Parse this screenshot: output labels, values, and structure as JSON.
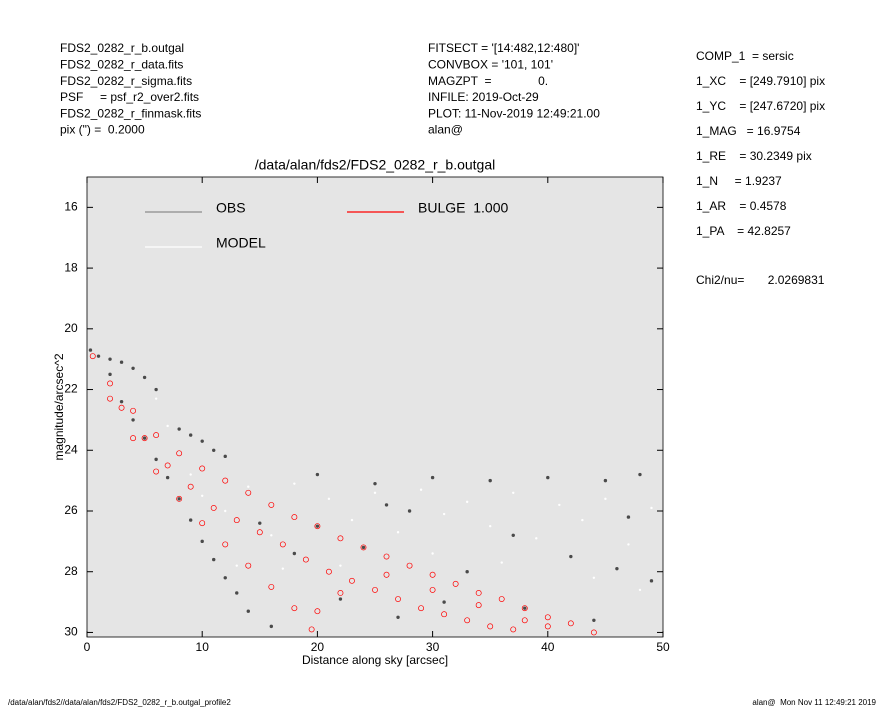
{
  "header_left": [
    "FDS2_0282_r_b.outgal",
    "FDS2_0282_r_data.fits",
    "FDS2_0282_r_sigma.fits",
    "PSF     = psf_r2_over2.fits",
    "FDS2_0282_r_finmask.fits",
    "pix (\") =  0.2000"
  ],
  "header_middle": [
    "FITSECT = '[14:482,12:480]'",
    "CONVBOX = '101, 101'",
    "MAGZPT  =              0.",
    "INFILE: 2019-Oct-29",
    "PLOT: 11-Nov-2019 12:49:21.00",
    "alan@"
  ],
  "parameters": [
    "COMP_1  = sersic",
    "1_XC    = [249.7910] pix",
    "1_YC    = [247.6720] pix",
    "1_MAG   = 16.9754",
    "1_RE    = 30.2349 pix",
    "1_N     = 1.9237",
    "1_AR    = 0.4578",
    "1_PA    = 42.8257"
  ],
  "chi2": "Chi2/nu=       2.0269831",
  "footer_left": "/data/alan/fds2//data/alan/fds2/FDS2_0282_r_b.outgal_profile2",
  "footer_right": "alan@  Mon Nov 11 12:49:21 2019",
  "chart_data": {
    "type": "scatter",
    "title": "/data/alan/fds2/FDS2_0282_r_b.outgal",
    "x_label": "Distance along sky [arcsec]",
    "y_label": "magnitude/arcsec^2",
    "xlim": [
      0,
      50
    ],
    "ylim": [
      30.15,
      15
    ],
    "xticks": [
      0,
      10,
      20,
      30,
      40,
      50
    ],
    "yticks": [
      16,
      18,
      20,
      22,
      24,
      26,
      28,
      30
    ],
    "background": "#e5e5e5",
    "series": [
      {
        "name": "OBS",
        "color": "#4a4a4a",
        "legend_color": "#8c8c8c",
        "x": [
          0.3,
          1,
          2,
          3,
          4,
          5,
          6,
          2,
          3,
          4,
          5,
          6,
          7,
          8,
          9,
          10,
          11,
          12,
          13,
          14,
          16,
          8,
          9,
          10,
          11,
          12,
          20,
          25,
          30,
          35,
          40,
          45,
          48,
          20,
          24,
          28,
          33,
          37,
          42,
          47,
          49,
          22,
          27,
          31,
          44,
          15,
          18,
          38,
          46,
          26
        ],
        "values": [
          20.7,
          20.9,
          21.0,
          21.1,
          21.3,
          21.6,
          22.0,
          21.5,
          22.4,
          23.0,
          23.6,
          24.3,
          24.9,
          25.6,
          26.3,
          27.0,
          27.6,
          28.2,
          28.7,
          29.3,
          29.8,
          23.3,
          23.5,
          23.7,
          24.0,
          24.2,
          24.8,
          25.1,
          24.9,
          25.0,
          24.9,
          25.0,
          24.8,
          26.5,
          27.2,
          26.0,
          28.0,
          26.8,
          27.5,
          26.2,
          28.3,
          28.9,
          29.5,
          29.0,
          29.6,
          26.4,
          27.4,
          29.2,
          27.9,
          25.8
        ]
      },
      {
        "name": "MODEL",
        "color": "#ffffff",
        "legend_color": "#ffffff",
        "x": [
          10,
          12,
          14,
          16,
          18,
          21,
          23,
          25,
          27,
          29,
          31,
          33,
          35,
          37,
          39,
          41,
          43,
          45,
          47,
          49,
          13,
          17,
          22,
          30,
          36,
          44,
          48,
          9,
          6,
          7
        ],
        "values": [
          25.5,
          26.0,
          25.2,
          26.8,
          25.1,
          25.6,
          26.3,
          25.4,
          26.7,
          25.3,
          26.1,
          25.7,
          26.5,
          25.4,
          26.9,
          25.8,
          26.3,
          25.6,
          27.1,
          25.9,
          27.8,
          27.9,
          27.8,
          27.4,
          27.7,
          28.2,
          28.6,
          24.8,
          22.3,
          23.2
        ]
      },
      {
        "name": "BULGE  1.000",
        "color": "#ff0000",
        "legend_color": "#ff0000",
        "x": [
          0.5,
          2,
          4,
          6,
          8,
          10,
          12,
          14,
          16,
          18,
          20,
          22,
          24,
          26,
          28,
          30,
          32,
          34,
          36,
          38,
          40,
          42,
          44,
          2,
          4,
          6,
          8,
          10,
          12,
          14,
          16,
          18,
          19.5,
          3,
          5,
          7,
          9,
          11,
          13,
          15,
          17,
          19,
          21,
          23,
          25,
          27,
          29,
          31,
          33,
          35,
          37,
          26,
          30,
          34,
          38,
          40,
          22,
          20
        ],
        "values": [
          20.9,
          21.8,
          22.7,
          23.5,
          24.1,
          24.6,
          25.0,
          25.4,
          25.8,
          26.2,
          26.5,
          26.9,
          27.2,
          27.5,
          27.8,
          28.1,
          28.4,
          28.7,
          28.9,
          29.2,
          29.5,
          29.7,
          30.0,
          22.3,
          23.6,
          24.7,
          25.6,
          26.4,
          27.1,
          27.8,
          28.5,
          29.2,
          29.9,
          22.6,
          23.6,
          24.5,
          25.2,
          25.9,
          26.3,
          26.7,
          27.1,
          27.6,
          28.0,
          28.3,
          28.6,
          28.9,
          29.2,
          29.4,
          29.6,
          29.8,
          29.9,
          28.1,
          28.6,
          29.1,
          29.6,
          29.8,
          28.7,
          29.3
        ]
      }
    ]
  }
}
